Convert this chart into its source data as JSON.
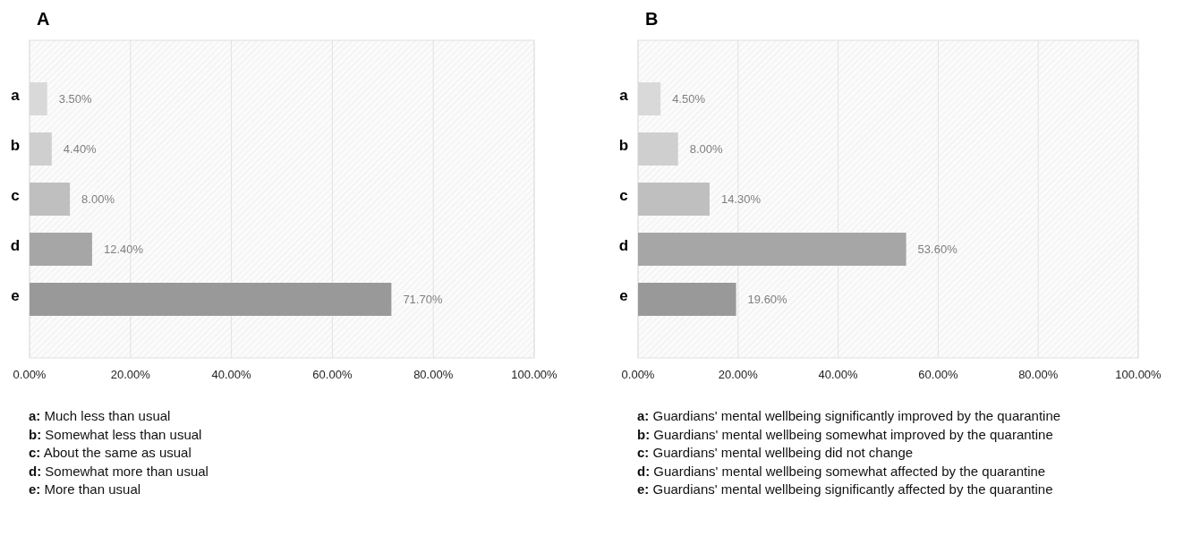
{
  "chart_data": [
    {
      "type": "bar",
      "title": "A",
      "orientation": "horizontal",
      "categories": [
        "a",
        "b",
        "c",
        "d",
        "e"
      ],
      "values": [
        3.5,
        4.4,
        8.0,
        12.4,
        71.7
      ],
      "colors": [
        "#d9d9d9",
        "#cfcfcf",
        "#bfbfbf",
        "#a6a6a6",
        "#999999"
      ],
      "value_labels": [
        "3.50%",
        "4.40%",
        "8.00%",
        "12.40%",
        "71.70%"
      ],
      "xlim": [
        0,
        100
      ],
      "xticks": [
        {
          "value": 0,
          "label": "0.00%"
        },
        {
          "value": 20,
          "label": "20.00%"
        },
        {
          "value": 40,
          "label": "40.00%"
        },
        {
          "value": 60,
          "label": "60.00%"
        },
        {
          "value": 80,
          "label": "80.00%"
        },
        {
          "value": 100,
          "label": "100.00%"
        }
      ],
      "grid": "x",
      "annotations": [
        "a: Much less than usual",
        "b: Somewhat less than usual",
        "c: About the same as usual",
        "d: Somewhat more than usual",
        "e: More than usual"
      ]
    },
    {
      "type": "bar",
      "title": "B",
      "orientation": "horizontal",
      "categories": [
        "a",
        "b",
        "c",
        "d",
        "e"
      ],
      "values": [
        4.5,
        8.0,
        14.3,
        53.6,
        19.6
      ],
      "colors": [
        "#d9d9d9",
        "#cfcfcf",
        "#bfbfbf",
        "#a6a6a6",
        "#999999"
      ],
      "value_labels": [
        "4.50%",
        "8.00%",
        "14.30%",
        "53.60%",
        "19.60%"
      ],
      "xlim": [
        0,
        100
      ],
      "xticks": [
        {
          "value": 0,
          "label": "0.00%"
        },
        {
          "value": 20,
          "label": "20.00%"
        },
        {
          "value": 40,
          "label": "40.00%"
        },
        {
          "value": 60,
          "label": "60.00%"
        },
        {
          "value": 80,
          "label": "80.00%"
        },
        {
          "value": 100,
          "label": "100.00%"
        }
      ],
      "grid": "x",
      "annotations": [
        "a: Guardians' mental wellbeing significantly improved by the quarantine",
        "b: Guardians' mental wellbeing somewhat improved by the quarantine",
        "c: Guardians' mental wellbeing did not change",
        "d: Guardians' mental wellbeing somewhat affected by the quarantine",
        "e: Guardians' mental wellbeing significantly affected by the quarantine"
      ]
    }
  ]
}
